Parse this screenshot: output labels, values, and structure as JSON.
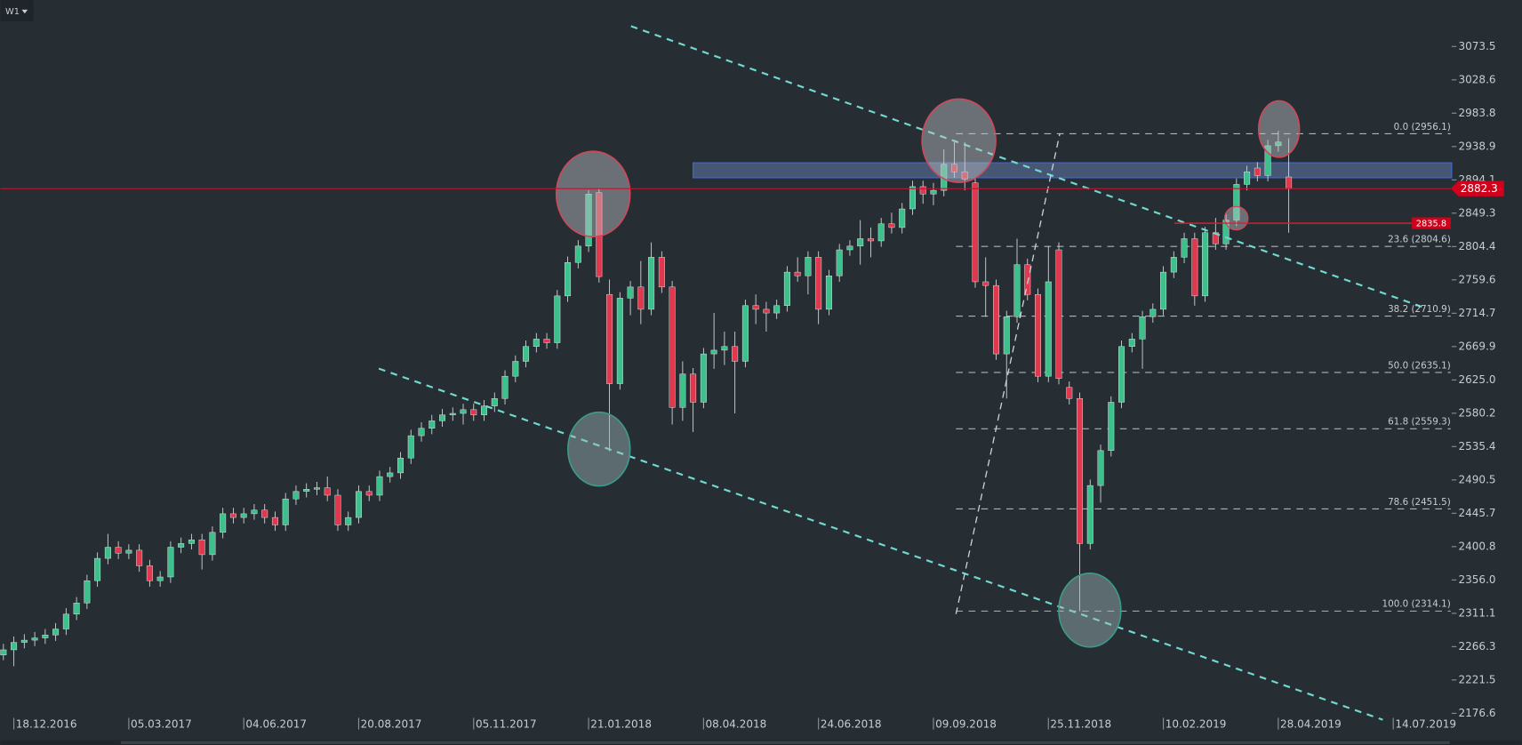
{
  "timeframe": "W1",
  "chart_data": {
    "type": "candlestick",
    "up_color": "#3cc08c",
    "down_color": "#e0384c",
    "ylim": [
      2134,
      3136
    ],
    "xlim": [
      -0.28,
      138.5
    ],
    "yticks": [
      3073.5,
      3028.6,
      2983.8,
      2938.9,
      2894.1,
      2849.3,
      2804.4,
      2759.6,
      2714.7,
      2669.9,
      {
        "value": 2625,
        "label": "2625.0"
      },
      2580.2,
      2535.4,
      2490.5,
      2445.7,
      2400.8,
      {
        "value": 2356,
        "label": "2356.0"
      },
      2311.1,
      2266.3,
      2221.5,
      2176.6
    ],
    "xticks": [
      {
        "value": 1,
        "label": "18.12.2016"
      },
      {
        "value": 12,
        "label": "05.03.2017"
      },
      {
        "value": 23,
        "label": "04.06.2017"
      },
      {
        "value": 34,
        "label": "20.08.2017"
      },
      {
        "value": 45,
        "label": "05.11.2017"
      },
      {
        "value": 56,
        "label": "21.01.2018"
      },
      {
        "value": 67,
        "label": "08.04.2018"
      },
      {
        "value": 78,
        "label": "24.06.2018"
      },
      {
        "value": 89,
        "label": "09.09.2018"
      },
      {
        "value": 100,
        "label": "25.11.2018"
      },
      {
        "value": 111,
        "label": "10.02.2019"
      },
      {
        "value": 122,
        "label": "28.04.2019"
      },
      {
        "value": 133,
        "label": "14.07.2019"
      }
    ],
    "ohlc": [
      [
        2255,
        2270,
        2248,
        2262
      ],
      [
        2262,
        2280,
        2240,
        2272
      ],
      [
        2272,
        2283,
        2264,
        2275
      ],
      [
        2275,
        2286,
        2267,
        2278
      ],
      [
        2278,
        2290,
        2270,
        2282
      ],
      [
        2282,
        2298,
        2274,
        2290
      ],
      [
        2290,
        2318,
        2282,
        2310
      ],
      [
        2310,
        2333,
        2302,
        2325
      ],
      [
        2325,
        2363,
        2317,
        2355
      ],
      [
        2355,
        2393,
        2347,
        2385
      ],
      [
        2385,
        2418,
        2377,
        2400
      ],
      [
        2400,
        2408,
        2384,
        2392
      ],
      [
        2392,
        2404,
        2384,
        2396
      ],
      [
        2396,
        2404,
        2367,
        2375
      ],
      [
        2375,
        2383,
        2347,
        2355
      ],
      [
        2355,
        2368,
        2347,
        2360
      ],
      [
        2360,
        2408,
        2352,
        2400
      ],
      [
        2400,
        2413,
        2392,
        2405
      ],
      [
        2405,
        2418,
        2397,
        2410
      ],
      [
        2410,
        2418,
        2370,
        2390
      ],
      [
        2390,
        2428,
        2382,
        2420
      ],
      [
        2420,
        2453,
        2412,
        2445
      ],
      [
        2445,
        2453,
        2432,
        2440
      ],
      [
        2440,
        2453,
        2432,
        2445
      ],
      [
        2445,
        2458,
        2437,
        2450
      ],
      [
        2450,
        2458,
        2432,
        2440
      ],
      [
        2440,
        2448,
        2422,
        2430
      ],
      [
        2430,
        2473,
        2422,
        2465
      ],
      [
        2465,
        2483,
        2457,
        2475
      ],
      [
        2475,
        2486,
        2467,
        2478
      ],
      [
        2478,
        2488,
        2470,
        2480
      ],
      [
        2480,
        2495,
        2462,
        2470
      ],
      [
        2470,
        2478,
        2422,
        2430
      ],
      [
        2430,
        2448,
        2422,
        2440
      ],
      [
        2440,
        2483,
        2432,
        2475
      ],
      [
        2475,
        2483,
        2462,
        2470
      ],
      [
        2470,
        2503,
        2462,
        2495
      ],
      [
        2495,
        2508,
        2487,
        2500
      ],
      [
        2500,
        2528,
        2492,
        2520
      ],
      [
        2520,
        2558,
        2512,
        2550
      ],
      [
        2550,
        2568,
        2542,
        2560
      ],
      [
        2560,
        2578,
        2552,
        2570
      ],
      [
        2570,
        2586,
        2562,
        2578
      ],
      [
        2578,
        2588,
        2570,
        2580
      ],
      [
        2580,
        2593,
        2565,
        2585
      ],
      [
        2585,
        2593,
        2570,
        2578
      ],
      [
        2578,
        2598,
        2570,
        2590
      ],
      [
        2590,
        2608,
        2582,
        2600
      ],
      [
        2600,
        2638,
        2592,
        2630
      ],
      [
        2630,
        2658,
        2622,
        2650
      ],
      [
        2650,
        2678,
        2642,
        2670
      ],
      [
        2670,
        2688,
        2662,
        2680
      ],
      [
        2680,
        2688,
        2667,
        2675
      ],
      [
        2675,
        2746,
        2667,
        2738
      ],
      [
        2738,
        2791,
        2730,
        2783
      ],
      [
        2783,
        2813,
        2775,
        2805
      ],
      [
        2805,
        2880,
        2797,
        2875
      ],
      [
        2877,
        2882,
        2756,
        2764
      ],
      [
        2740,
        2760,
        2529,
        2620
      ],
      [
        2620,
        2743,
        2612,
        2735
      ],
      [
        2735,
        2758,
        2712,
        2750
      ],
      [
        2750,
        2785,
        2700,
        2720
      ],
      [
        2720,
        2810,
        2712,
        2790
      ],
      [
        2790,
        2798,
        2742,
        2750
      ],
      [
        2750,
        2758,
        2565,
        2588
      ],
      [
        2588,
        2650,
        2570,
        2633
      ],
      [
        2633,
        2641,
        2555,
        2595
      ],
      [
        2595,
        2668,
        2587,
        2660
      ],
      [
        2660,
        2715,
        2640,
        2665
      ],
      [
        2665,
        2690,
        2645,
        2670
      ],
      [
        2670,
        2690,
        2580,
        2650
      ],
      [
        2650,
        2733,
        2642,
        2725
      ],
      [
        2725,
        2740,
        2700,
        2720
      ],
      [
        2720,
        2730,
        2690,
        2715
      ],
      [
        2715,
        2733,
        2707,
        2725
      ],
      [
        2725,
        2778,
        2717,
        2770
      ],
      [
        2770,
        2790,
        2757,
        2765
      ],
      [
        2765,
        2798,
        2740,
        2790
      ],
      [
        2790,
        2798,
        2700,
        2720
      ],
      [
        2720,
        2773,
        2712,
        2765
      ],
      [
        2765,
        2808,
        2757,
        2800
      ],
      [
        2800,
        2813,
        2792,
        2805
      ],
      [
        2805,
        2840,
        2780,
        2815
      ],
      [
        2815,
        2830,
        2790,
        2812
      ],
      [
        2812,
        2843,
        2804,
        2835
      ],
      [
        2835,
        2850,
        2822,
        2830
      ],
      [
        2830,
        2863,
        2822,
        2855
      ],
      [
        2855,
        2893,
        2847,
        2885
      ],
      [
        2885,
        2893,
        2862,
        2875
      ],
      [
        2875,
        2890,
        2860,
        2880
      ],
      [
        2880,
        2935,
        2872,
        2915
      ],
      [
        2915,
        2945,
        2897,
        2905
      ],
      [
        2905,
        2945,
        2880,
        2895
      ],
      [
        2890,
        2898,
        2749,
        2757
      ],
      [
        2757,
        2790,
        2710,
        2752
      ],
      [
        2752,
        2760,
        2652,
        2660
      ],
      [
        2660,
        2718,
        2600,
        2710
      ],
      [
        2710,
        2815,
        2702,
        2780
      ],
      [
        2780,
        2788,
        2732,
        2740
      ],
      [
        2740,
        2748,
        2622,
        2630
      ],
      [
        2630,
        2805,
        2622,
        2757
      ],
      [
        2800,
        2810,
        2619,
        2627
      ],
      [
        2615,
        2623,
        2592,
        2600
      ],
      [
        2600,
        2608,
        2314,
        2405
      ],
      [
        2405,
        2491,
        2397,
        2483
      ],
      [
        2483,
        2538,
        2460,
        2530
      ],
      [
        2530,
        2603,
        2522,
        2595
      ],
      [
        2595,
        2678,
        2587,
        2670
      ],
      [
        2670,
        2688,
        2662,
        2680
      ],
      [
        2680,
        2718,
        2640,
        2710
      ],
      [
        2710,
        2728,
        2702,
        2720
      ],
      [
        2720,
        2778,
        2712,
        2770
      ],
      [
        2770,
        2798,
        2762,
        2790
      ],
      [
        2790,
        2823,
        2782,
        2815
      ],
      [
        2815,
        2823,
        2725,
        2738
      ],
      [
        2738,
        2831,
        2730,
        2823
      ],
      [
        2823,
        2843,
        2800,
        2808
      ],
      [
        2808,
        2848,
        2800,
        2840
      ],
      [
        2840,
        2896,
        2832,
        2888
      ],
      [
        2888,
        2913,
        2880,
        2905
      ],
      [
        2910,
        2918,
        2892,
        2900
      ],
      [
        2900,
        2948,
        2892,
        2940
      ],
      [
        2940,
        2960,
        2932,
        2945
      ],
      [
        2898,
        2950,
        2823,
        2882
      ]
    ],
    "last_price": 2882.3,
    "support_price": 2835.8,
    "resistance_zone": {
      "from": 2897,
      "to": 2917
    },
    "fib_levels": [
      {
        "label": "0.0 (2956.1)",
        "value": 2956.1
      },
      {
        "label": "23.6 (2804.6)",
        "value": 2804.6
      },
      {
        "label": "38.2 (2710.9)",
        "value": 2710.9
      },
      {
        "label": "50.0 (2635.1)",
        "value": 2635.1
      },
      {
        "label": "61.8 (2559.3)",
        "value": 2559.3
      },
      {
        "label": "78.6 (2451.5)",
        "value": 2451.5
      },
      {
        "label": "100.0 (2314.1)",
        "value": 2314.1
      }
    ]
  }
}
